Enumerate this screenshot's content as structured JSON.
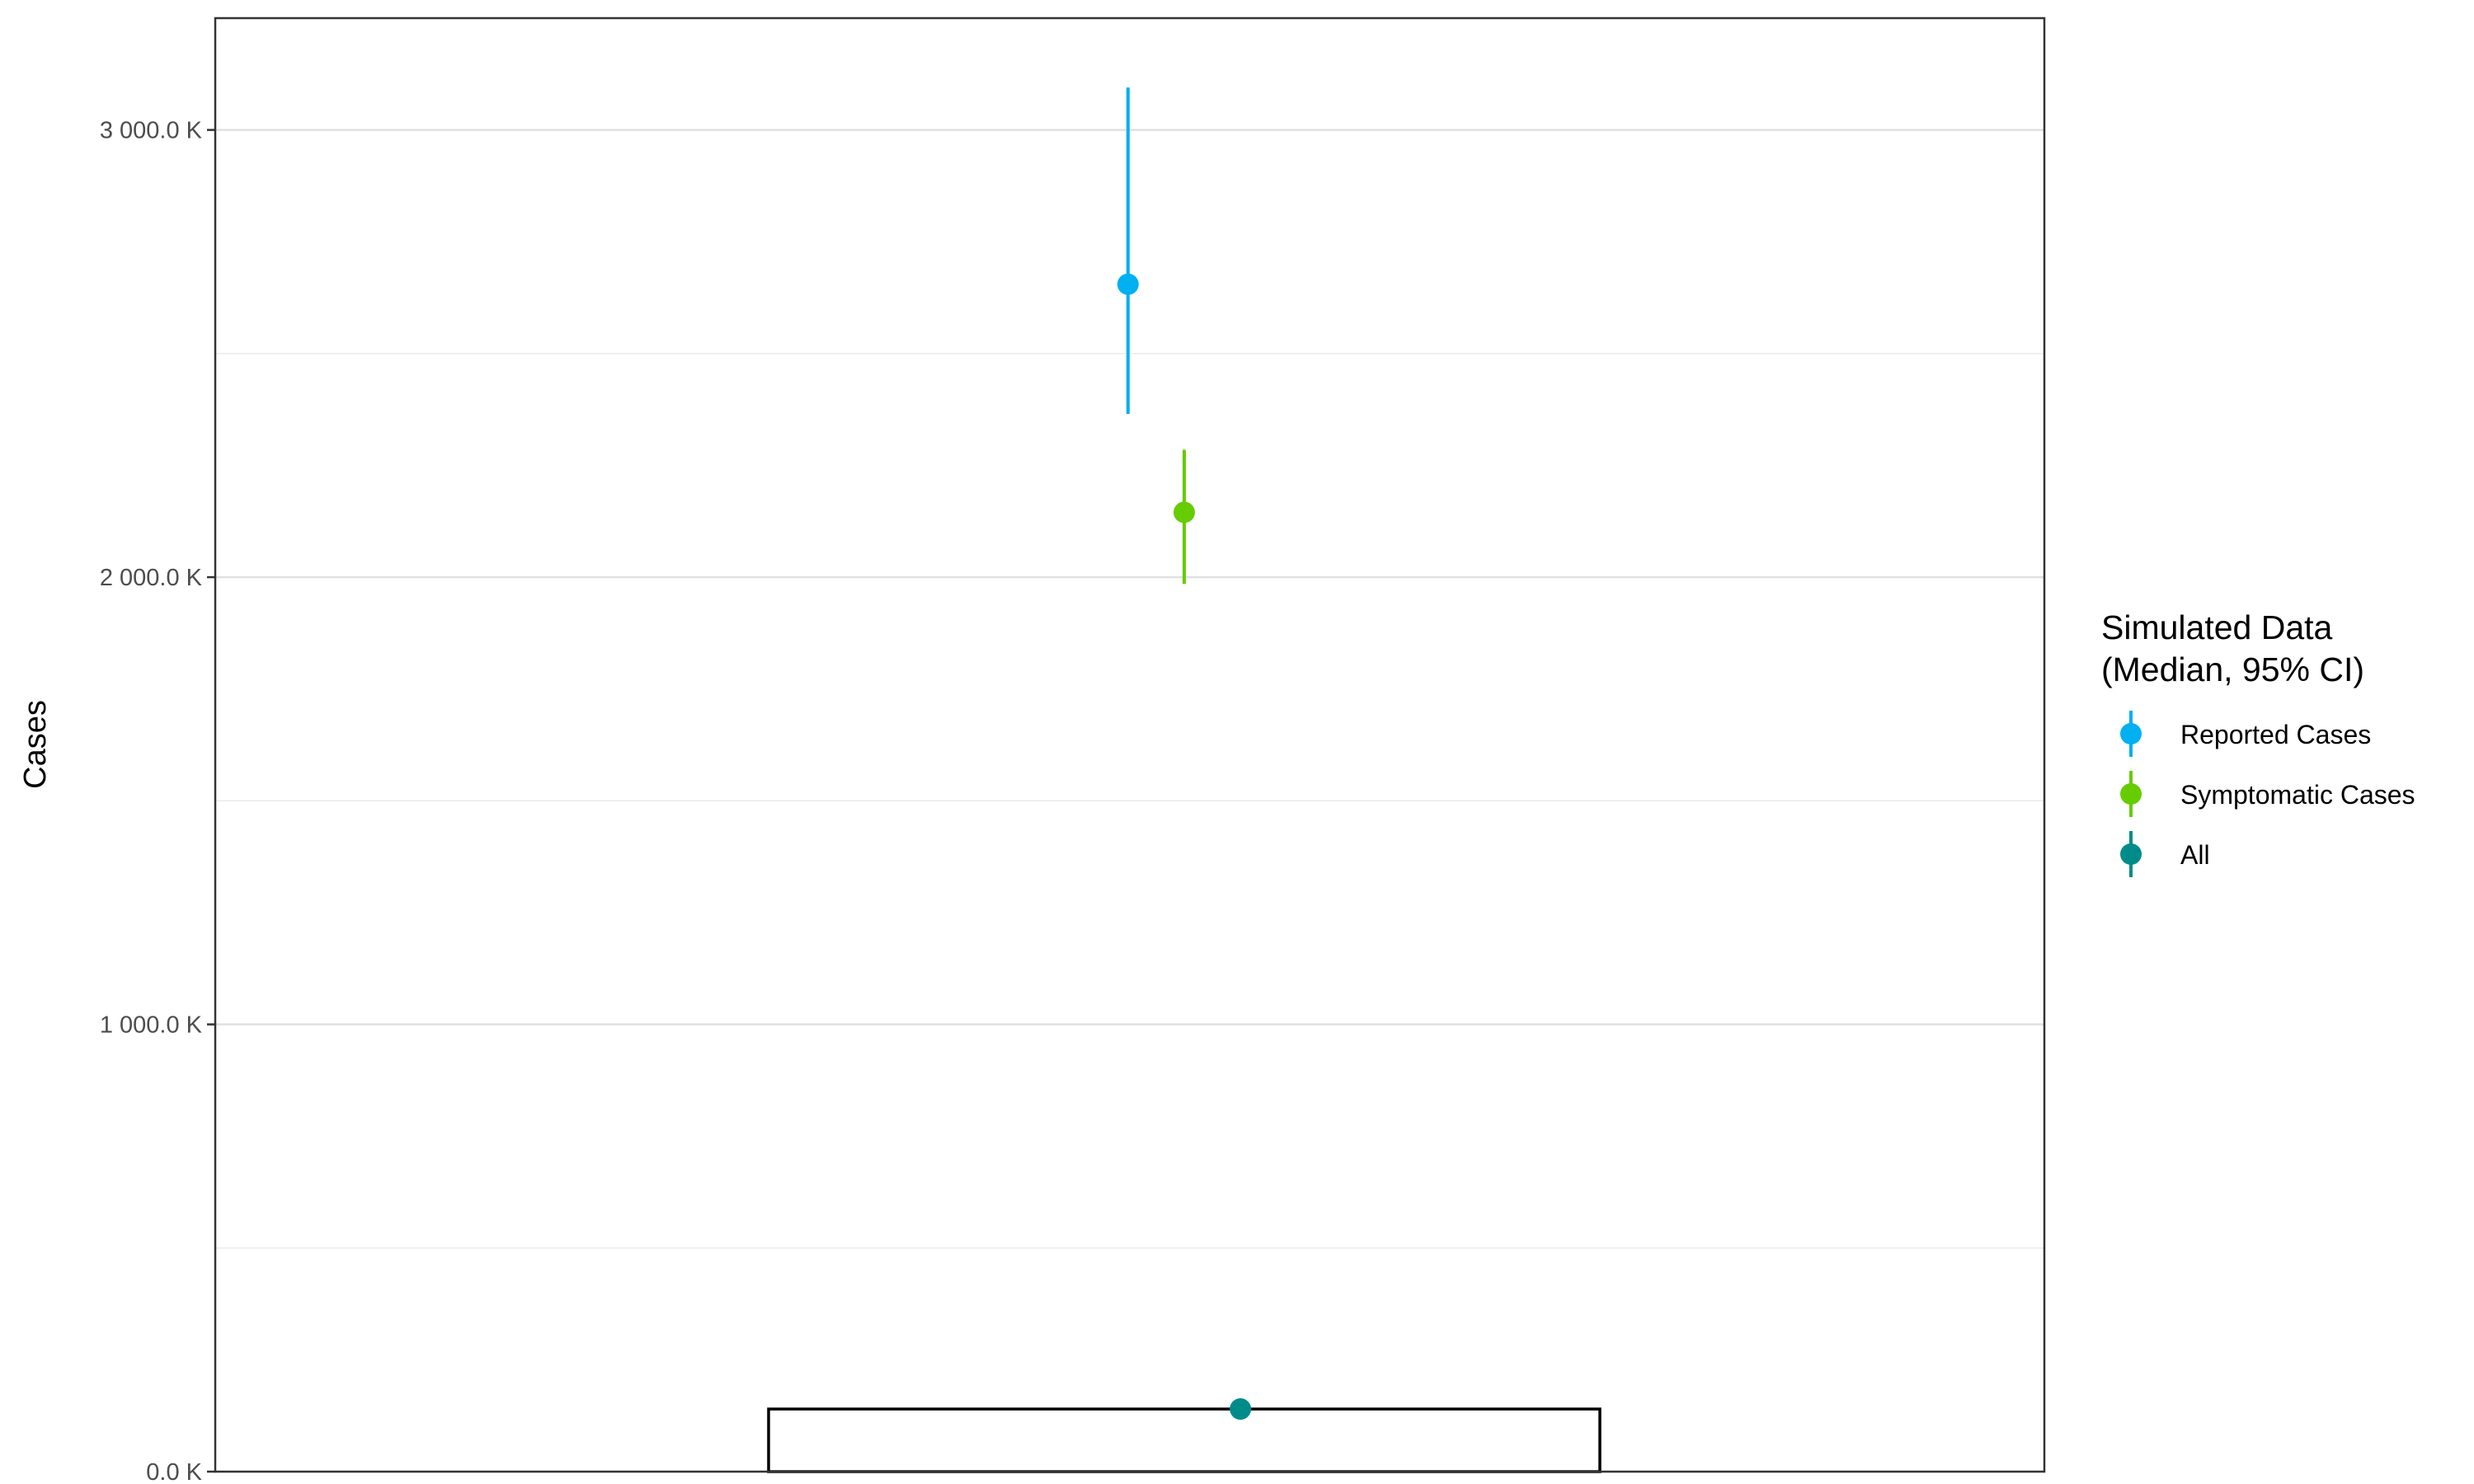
{
  "chart_data": {
    "type": "scatter",
    "title": "",
    "xlabel": "",
    "ylabel": "Cases",
    "ylim": [
      0,
      3250
    ],
    "y_unit": "K",
    "y_ticks": [
      0,
      1000,
      2000,
      3000
    ],
    "y_tick_labels": [
      "0.0 K",
      "1 000.0 K",
      "2 000.0 K",
      "3 000.0 K"
    ],
    "minor_gridlines": [
      500,
      1500,
      2500
    ],
    "grid": true,
    "bar": {
      "value": 140,
      "outline": "#000000",
      "fill": "none"
    },
    "series": [
      {
        "name": "Reported Cases",
        "color": "#00b0f0",
        "median": 2655,
        "ci_low": 2365,
        "ci_high": 3095,
        "dodge": -0.12
      },
      {
        "name": "Symptomatic Cases",
        "color": "#66cc00",
        "median": 2145,
        "ci_low": 1985,
        "ci_high": 2285,
        "dodge": 0
      },
      {
        "name": "All",
        "color": "#008b8b",
        "median": 140,
        "ci_low": 140,
        "ci_high": 140,
        "dodge": 0.12
      }
    ],
    "legend": {
      "title_lines": [
        "Simulated Data",
        "(Median, 95% CI)"
      ],
      "placement": "right"
    }
  }
}
